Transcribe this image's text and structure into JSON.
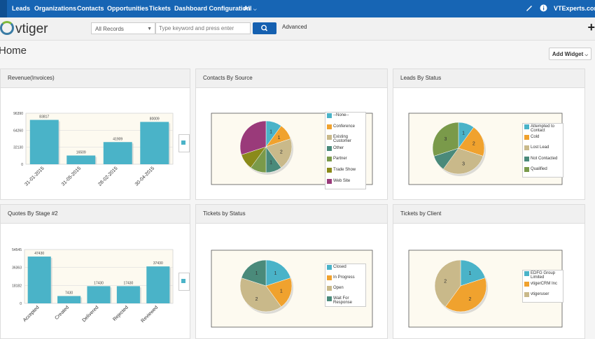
{
  "topbar": {
    "nav": [
      "Leads",
      "Organizations",
      "Contacts",
      "Opportunities",
      "Tickets",
      "Dashboard Configuration",
      "All"
    ],
    "account": "VTExperts.com"
  },
  "header": {
    "logo": "vtiger",
    "records_select": "All Records",
    "search_placeholder": "Type keyword and press enter",
    "advanced": "Advanced"
  },
  "page": {
    "title": "Home",
    "add_widget": "Add Widget"
  },
  "colors": {
    "topbar": "#1765b4",
    "bar": "#4ab3c8"
  },
  "widgets": {
    "revenue": {
      "title": "Revenue(Invoices)",
      "chart_data": {
        "type": "bar",
        "categories": [
          "31-01-2015",
          "31-05-2015",
          "28-02-2015",
          "30-04-2015"
        ],
        "values": [
          83817,
          16509,
          41909,
          80009
        ],
        "yticks": [
          "96390",
          "64260",
          "32130",
          "0"
        ],
        "ylim": [
          0,
          96390
        ]
      }
    },
    "contacts_source": {
      "title": "Contacts By Source",
      "chart_data": {
        "type": "pie",
        "legend": [
          {
            "label": "--None--",
            "color": "#4ab3c8"
          },
          {
            "label": "Conference",
            "color": "#f0a22e"
          },
          {
            "label": "Existing Customer",
            "color": "#c9b98a"
          },
          {
            "label": "Other",
            "color": "#4a8a7a"
          },
          {
            "label": "Partner",
            "color": "#7a9a4a"
          },
          {
            "label": "Trade Show",
            "color": "#8a8a1a"
          },
          {
            "label": "Web Site",
            "color": "#9a3a7a"
          }
        ],
        "values": [
          1,
          1,
          2,
          1,
          1,
          1,
          3
        ],
        "labels": [
          "1",
          "1",
          "2",
          "1",
          "",
          "",
          ""
        ]
      }
    },
    "leads_status": {
      "title": "Leads By Status",
      "chart_data": {
        "type": "pie",
        "legend": [
          {
            "label": "Attempted to Contact",
            "color": "#4ab3c8"
          },
          {
            "label": "Cold",
            "color": "#f0a22e"
          },
          {
            "label": "Lost Lead",
            "color": "#c9b98a"
          },
          {
            "label": "Not Contacted",
            "color": "#4a8a7a"
          },
          {
            "label": "Qualified",
            "color": "#7a9a4a"
          }
        ],
        "values": [
          1,
          2,
          3,
          1,
          3
        ],
        "labels": [
          "1",
          "2",
          "3",
          "",
          "3"
        ]
      }
    },
    "quotes_stage": {
      "title": "Quotes By Stage #2",
      "chart_data": {
        "type": "bar",
        "categories": [
          "Accepted",
          "Created",
          "Delivered",
          "Rejected",
          "Reviewed"
        ],
        "values": [
          47430,
          7430,
          17430,
          17430,
          37430
        ],
        "yticks": [
          "54545",
          "36363",
          "18182",
          "0"
        ],
        "ylim": [
          0,
          54545
        ]
      }
    },
    "tickets_status": {
      "title": "Tickets by Status",
      "chart_data": {
        "type": "pie",
        "legend": [
          {
            "label": "Closed",
            "color": "#4ab3c8"
          },
          {
            "label": "In Progress",
            "color": "#f0a22e"
          },
          {
            "label": "Open",
            "color": "#c9b98a"
          },
          {
            "label": "Wait For Response",
            "color": "#4a8a7a"
          }
        ],
        "values": [
          1,
          1,
          2,
          1
        ],
        "labels": [
          "1",
          "1",
          "2",
          "1"
        ]
      }
    },
    "tickets_client": {
      "title": "Tickets by Client",
      "chart_data": {
        "type": "pie",
        "legend": [
          {
            "label": "EDFG Group Limited",
            "color": "#4ab3c8"
          },
          {
            "label": "vtigerCRM Inc",
            "color": "#f0a22e"
          },
          {
            "label": "vtigeruser",
            "color": "#c9b98a"
          }
        ],
        "values": [
          1,
          2,
          2
        ],
        "labels": [
          "1",
          "2",
          "2"
        ]
      }
    }
  }
}
